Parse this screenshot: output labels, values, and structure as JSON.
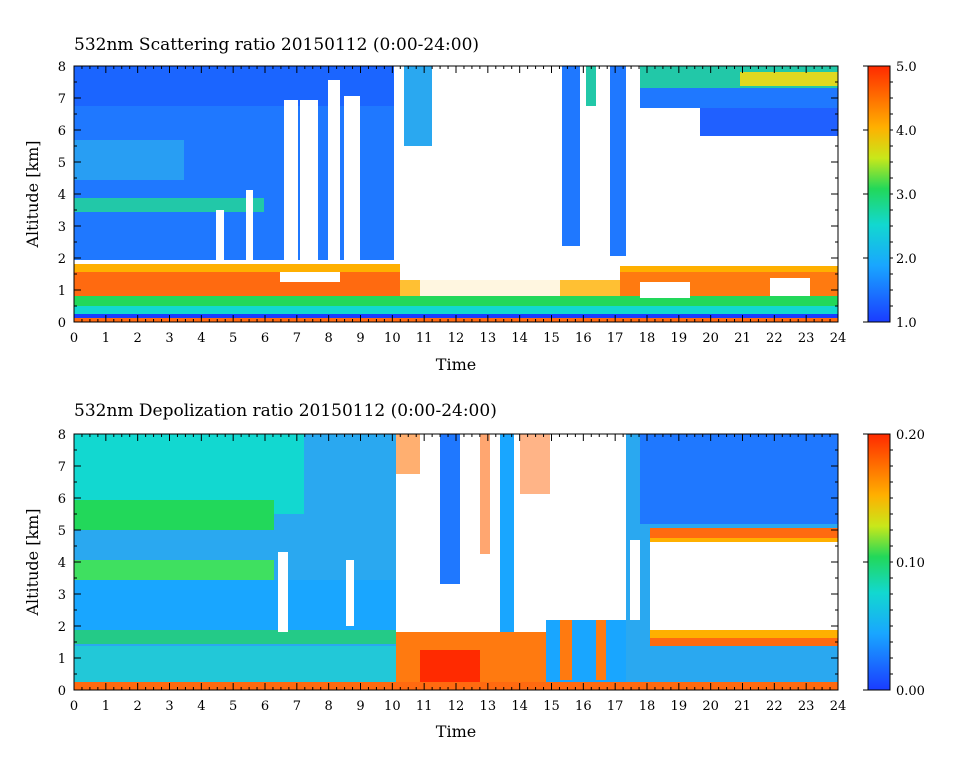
{
  "chart_data": [
    {
      "type": "heatmap",
      "title": "532nm Scattering ratio  20150112 (0:00-24:00)",
      "xlabel": "Time",
      "ylabel": "Altitude [km]",
      "xlim": [
        0,
        24
      ],
      "ylim": [
        0,
        8
      ],
      "x_ticks": [
        "0",
        "1",
        "2",
        "3",
        "4",
        "5",
        "6",
        "7",
        "8",
        "9",
        "10",
        "11",
        "12",
        "13",
        "14",
        "15",
        "16",
        "17",
        "18",
        "19",
        "20",
        "21",
        "22",
        "23",
        "24"
      ],
      "y_ticks": [
        "0",
        "1",
        "2",
        "3",
        "4",
        "5",
        "6",
        "7",
        "8"
      ],
      "colorbar": {
        "min": 1.0,
        "max": 5.0,
        "ticks": [
          "1.0",
          "2.0",
          "3.0",
          "4.0",
          "5.0"
        ]
      },
      "colors": {
        "low": "#1a3cff",
        "mid": "#22d85a",
        "high": "#ff2a00",
        "missing": "#ffffff"
      }
    },
    {
      "type": "heatmap",
      "title": "532nm Depolization ratio  20150112 (0:00-24:00)",
      "xlabel": "Time",
      "ylabel": "Altitude [km]",
      "xlim": [
        0,
        24
      ],
      "ylim": [
        0,
        8
      ],
      "x_ticks": [
        "0",
        "1",
        "2",
        "3",
        "4",
        "5",
        "6",
        "7",
        "8",
        "9",
        "10",
        "11",
        "12",
        "13",
        "14",
        "15",
        "16",
        "17",
        "18",
        "19",
        "20",
        "21",
        "22",
        "23",
        "24"
      ],
      "y_ticks": [
        "0",
        "1",
        "2",
        "3",
        "4",
        "5",
        "6",
        "7",
        "8"
      ],
      "colorbar": {
        "min": 0.0,
        "max": 0.2,
        "ticks": [
          "0.00",
          "0.10",
          "0.20"
        ]
      },
      "colors": {
        "low": "#1a3cff",
        "mid": "#22d85a",
        "high": "#ff2a00",
        "missing": "#ffffff"
      }
    }
  ]
}
